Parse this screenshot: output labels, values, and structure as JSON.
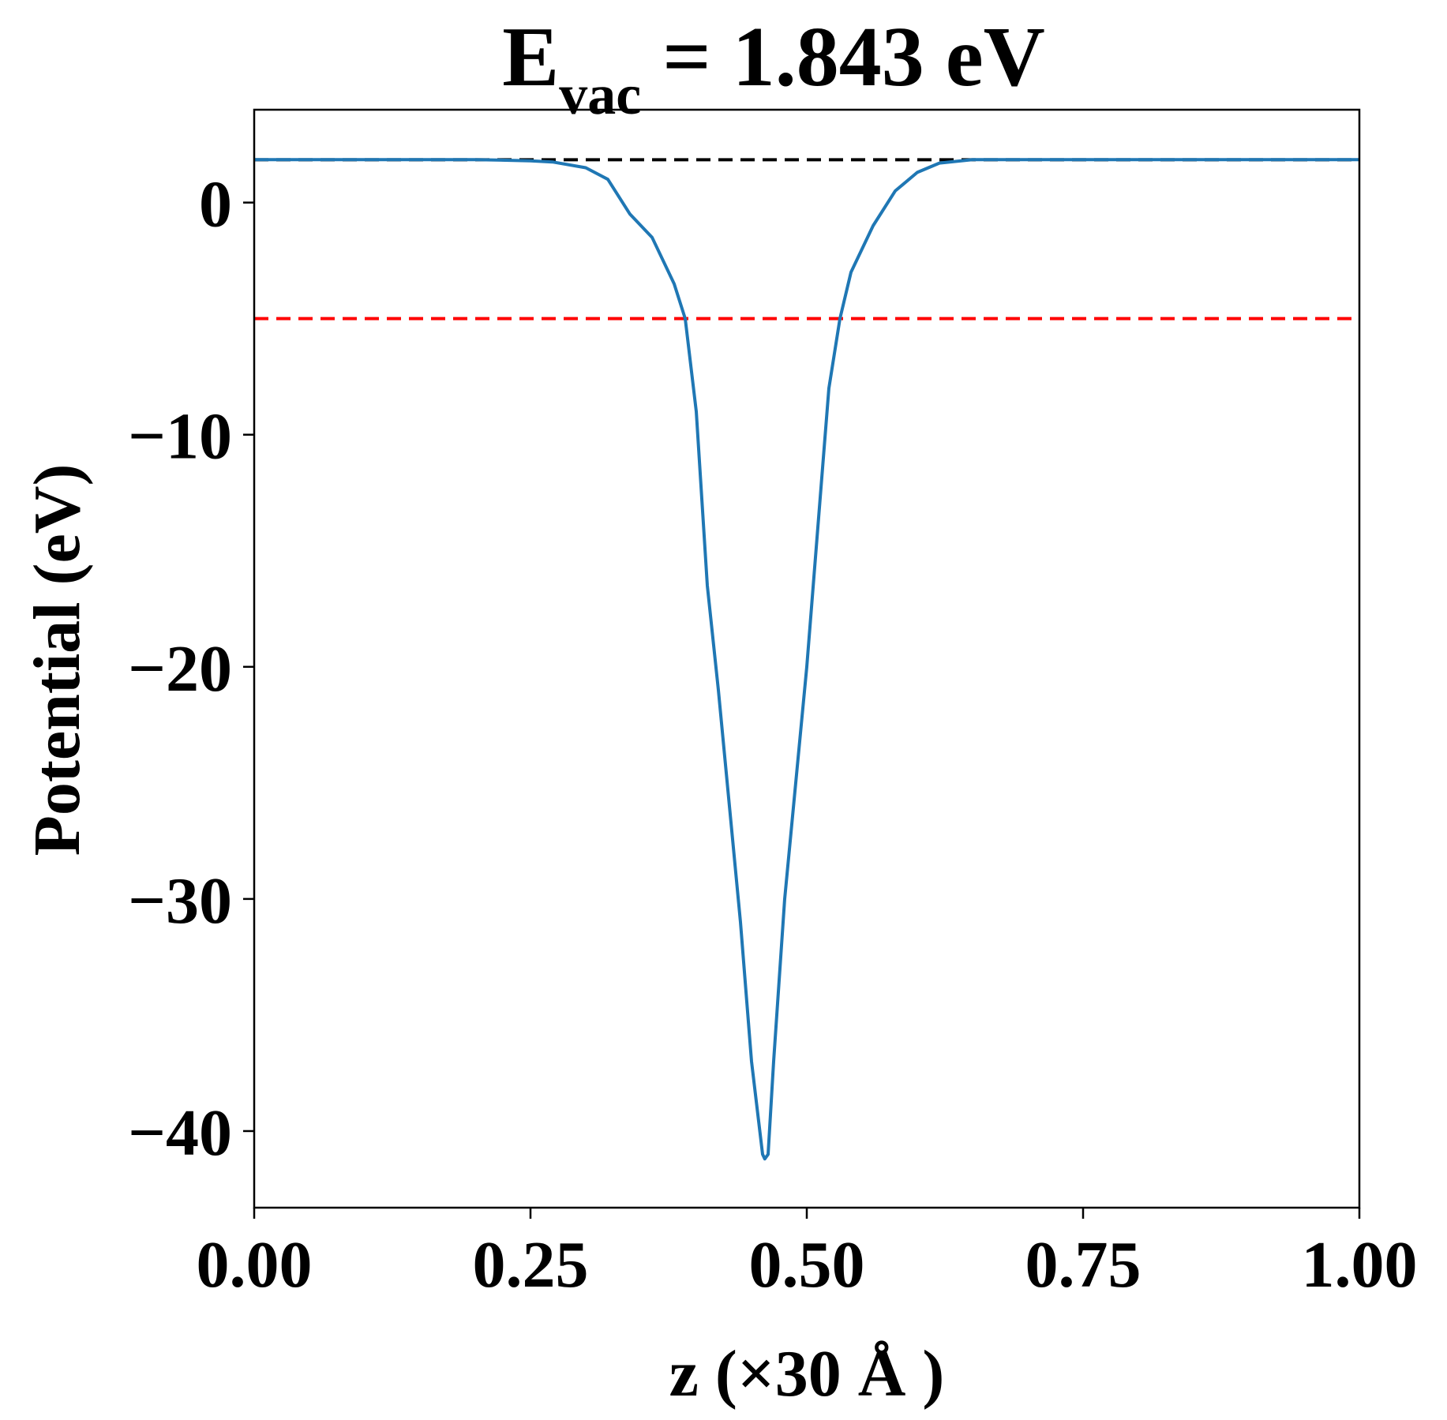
{
  "chart_data": {
    "type": "line",
    "title": {
      "main": "E",
      "subscript": "vac",
      "rest": " = 1.843 eV"
    },
    "xlabel": "z (×30 Å )",
    "ylabel": "Potential (eV)",
    "xlim": [
      0.0,
      1.0
    ],
    "ylim": [
      -43.3,
      4.0
    ],
    "xticks": [
      0.0,
      0.25,
      0.5,
      0.75,
      1.0
    ],
    "xtick_labels": [
      "0.00",
      "0.25",
      "0.50",
      "0.75",
      "1.00"
    ],
    "yticks": [
      0,
      -10,
      -20,
      -30,
      -40
    ],
    "ytick_labels": [
      "0",
      "−10",
      "−20",
      "−30",
      "−40"
    ],
    "grid": false,
    "series": [
      {
        "color": "#1f77b4",
        "x": [
          0.0,
          0.05,
          0.1,
          0.15,
          0.2,
          0.25,
          0.27,
          0.3,
          0.32,
          0.34,
          0.36,
          0.38,
          0.39,
          0.4,
          0.41,
          0.42,
          0.43,
          0.44,
          0.45,
          0.46,
          0.462,
          0.465,
          0.47,
          0.48,
          0.49,
          0.5,
          0.51,
          0.52,
          0.53,
          0.54,
          0.56,
          0.58,
          0.6,
          0.62,
          0.65,
          0.7,
          0.8,
          0.9,
          1.0
        ],
        "y": [
          1.85,
          1.85,
          1.85,
          1.85,
          1.85,
          1.8,
          1.75,
          1.5,
          1.0,
          -0.5,
          -1.5,
          -3.5,
          -5.0,
          -9.0,
          -16.5,
          -21.0,
          -26.0,
          -31.0,
          -37.0,
          -41.0,
          -41.2,
          -41.0,
          -37.0,
          -30.0,
          -25.0,
          -20.0,
          -14.0,
          -8.0,
          -5.0,
          -3.0,
          -1.0,
          0.5,
          1.3,
          1.7,
          1.85,
          1.85,
          1.85,
          1.85,
          1.85
        ]
      }
    ],
    "reference_lines": [
      {
        "y": 1.843,
        "color": "#000000",
        "style": "dashed",
        "x_range": [
          0.0,
          1.0
        ]
      },
      {
        "y": -5.0,
        "color": "#ff0000",
        "style": "dashed",
        "x_range": [
          0.0,
          1.0
        ]
      }
    ]
  }
}
